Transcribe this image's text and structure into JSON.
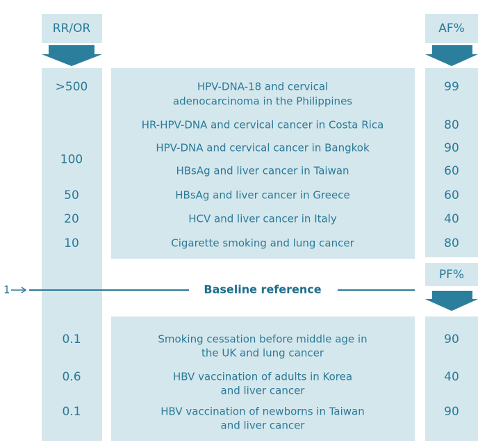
{
  "headers": {
    "rr": "RR/OR",
    "af": "AF%",
    "pf": "PF%"
  },
  "baseline": {
    "value": 1,
    "label": "Baseline reference"
  },
  "risk_rows": [
    {
      "rr": ">500",
      "lines": [
        "HPV-DNA-18 and cervical",
        "adenocarcinoma in the Philippines"
      ],
      "af": 99
    },
    {
      "lines": [
        "HR-HPV-DNA and cervical cancer in Costa Rica"
      ],
      "af": 80
    },
    {
      "rr": 100,
      "lines": [
        "HPV-DNA and cervical cancer in Bangkok"
      ],
      "af": 90
    },
    {
      "lines": [
        "HBsAg and liver cancer in Taiwan"
      ],
      "af": 60
    },
    {
      "rr": 50,
      "lines": [
        "HBsAg and liver cancer in Greece"
      ],
      "af": 60
    },
    {
      "rr": 20,
      "lines": [
        "HCV and liver cancer in Italy"
      ],
      "af": 40
    },
    {
      "rr": 10,
      "lines": [
        "Cigarette smoking and lung cancer"
      ],
      "af": 80
    }
  ],
  "protective_rows": [
    {
      "rr": 0.1,
      "lines": [
        "Smoking cessation before middle age in",
        "the UK and lung cancer"
      ],
      "pf": 90
    },
    {
      "rr": 0.6,
      "lines": [
        "HBV vaccination of adults in Korea",
        "and liver cancer"
      ],
      "pf": 40
    },
    {
      "rr": 0.1,
      "lines": [
        "HBV vaccination of newborns in Taiwan",
        "and liver cancer"
      ],
      "pf": 90
    }
  ]
}
